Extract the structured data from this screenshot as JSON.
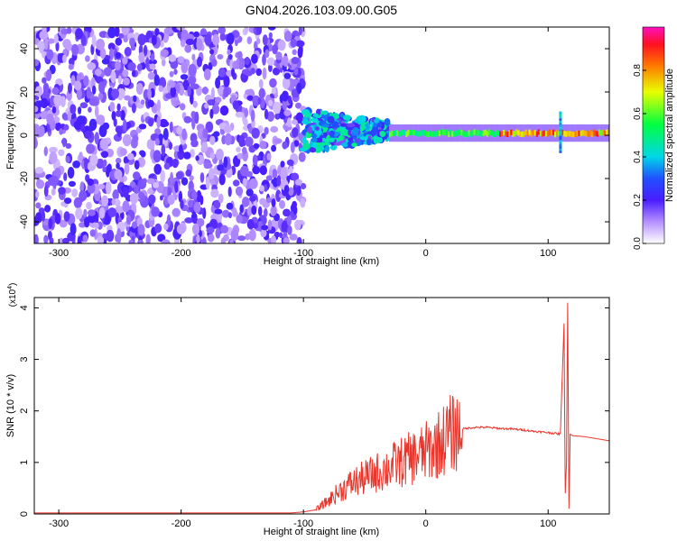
{
  "chart_data": [
    {
      "type": "heatmap",
      "title": "GN04.2026.103.09.00.G05",
      "xlabel": "Height of straight line (km)",
      "ylabel": "Frequency (Hz)",
      "xlim": [
        -320,
        150
      ],
      "ylim": [
        -50,
        50
      ],
      "x_ticks": [
        "-300",
        "-200",
        "-100",
        "0",
        "100"
      ],
      "x_tick_values": [
        -300,
        -200,
        -100,
        0,
        100
      ],
      "y_ticks": [
        "40",
        "20",
        "0",
        "-20",
        "-40"
      ],
      "y_tick_values": [
        40,
        20,
        0,
        -20,
        -40
      ],
      "colorbar": {
        "label": "Normalized spectral amplitude",
        "range": [
          0,
          1
        ],
        "ticks": [
          "0.0",
          "0.2",
          "0.4",
          "0.6",
          "0.8"
        ],
        "tick_values": [
          0.0,
          0.2,
          0.4,
          0.6,
          0.8
        ]
      },
      "features": [
        {
          "x_range": [
            -320,
            -100
          ],
          "description_freq": [
            -50,
            50
          ],
          "amplitude": 0.15
        },
        {
          "x_range": [
            -100,
            -30
          ],
          "description_freq": [
            -5,
            10
          ],
          "amplitude": 0.35
        },
        {
          "x_range": [
            -30,
            150
          ],
          "description_freq": [
            0,
            2
          ],
          "amplitude": 0.8
        },
        {
          "x_range": [
            108,
            112
          ],
          "description_freq": [
            -8,
            10
          ],
          "amplitude": 0.3
        }
      ]
    },
    {
      "type": "line",
      "xlabel": "Height of straight line (km)",
      "ylabel": "SNR (10 * v/v)",
      "y_scale_label": "(x10",
      "y_scale_exp": "4",
      "xlim": [
        -320,
        150
      ],
      "ylim": [
        0,
        4.2
      ],
      "x_ticks": [
        "-300",
        "-200",
        "-100",
        "0",
        "100"
      ],
      "x_tick_values": [
        -300,
        -200,
        -100,
        0,
        100
      ],
      "y_ticks": [
        "0",
        "1",
        "2",
        "3",
        "4"
      ],
      "y_tick_values": [
        0,
        1,
        2,
        3,
        4
      ],
      "line_color": "#e8362c",
      "series": [
        {
          "x": [
            -320,
            -200,
            -110,
            -100,
            -90,
            -80,
            -70,
            -60,
            -50,
            -40,
            -30,
            -20,
            -10,
            0,
            10,
            20,
            30,
            40,
            50,
            60,
            70,
            80,
            90,
            100,
            110,
            113,
            114,
            115,
            116,
            117,
            118,
            120,
            130,
            150
          ],
          "y": [
            0.02,
            0.02,
            0.02,
            0.04,
            0.08,
            0.25,
            0.45,
            0.6,
            0.7,
            0.8,
            0.9,
            1.0,
            1.1,
            1.2,
            1.35,
            1.55,
            1.65,
            1.68,
            1.68,
            1.66,
            1.65,
            1.63,
            1.6,
            1.58,
            1.55,
            3.7,
            0.4,
            1.0,
            4.1,
            0.1,
            1.55,
            1.52,
            1.5,
            1.42
          ]
        }
      ]
    }
  ]
}
